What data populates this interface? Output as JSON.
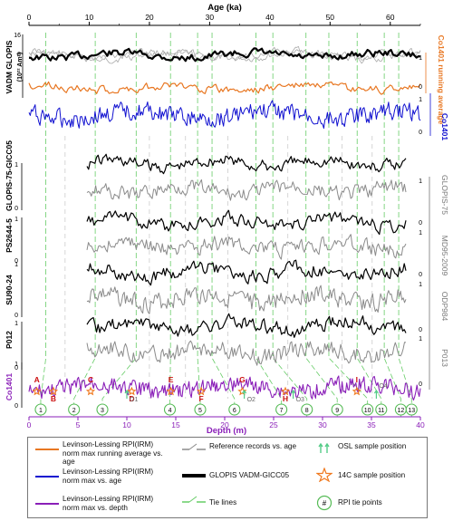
{
  "figure": {
    "top_axis": {
      "title": "Age (ka)",
      "min": 0,
      "max": 65,
      "ticks": [
        "0",
        "10",
        "20",
        "30",
        "40",
        "50",
        "60"
      ]
    },
    "bottom_axis": {
      "title": "Depth (m)",
      "min": 0,
      "max": 40,
      "ticks": [
        "0",
        "5",
        "10",
        "15",
        "20",
        "25",
        "30",
        "35",
        "40"
      ]
    },
    "left_labels": {
      "vadm": "VADM GLOPIS",
      "vadm_unit": "(10²² Am²)",
      "glopis_gicc": "GLOPIS-75-GICC05",
      "ps2644": "PS2644-5",
      "su90": "SU90-24",
      "p012": "P012",
      "co1401_bottom": "Co1401"
    },
    "right_labels": {
      "co1401_running": "Co1401 running average",
      "co1401": "Co1401",
      "glopis75": "GLOPIS-75",
      "md95": "MD95-2009",
      "odp984": "ODP984",
      "p013": "P013"
    },
    "scale_ticks": {
      "vadm": [
        "16",
        "8"
      ],
      "unit_left": [
        "1",
        "0"
      ],
      "unit_right": [
        "1",
        "0"
      ]
    },
    "c14_labels": [
      "A",
      "B",
      "C",
      "D",
      "E",
      "F",
      "G",
      "H",
      "I"
    ],
    "osl_labels": [
      "O1",
      "O2",
      "O3",
      "O4"
    ],
    "tie_points": [
      "1",
      "2",
      "3",
      "4",
      "5",
      "6",
      "7",
      "8",
      "9",
      "10",
      "11",
      "12",
      "13"
    ]
  },
  "legend": {
    "items": [
      {
        "label": "Levinson-Lessing RPI(IRM) norm max running average vs. age"
      },
      {
        "label": "Levinson-Lessing RPI(IRM) norm max vs. age"
      },
      {
        "label": "Levinson-Lessing RPI(IRM) norm max vs. depth"
      },
      {
        "label": "Reference records vs. age"
      },
      {
        "label": "GLOPIS VADM-GICC05"
      },
      {
        "label": "Tie lines"
      },
      {
        "label": "OSL sample position"
      },
      {
        "label": "14C sample position"
      },
      {
        "label": "RPI tie points"
      }
    ],
    "tie_point_symbol": "#"
  },
  "colors": {
    "orange": "#e87722",
    "blue": "#1010d0",
    "purple": "#8a1fb8",
    "green": "#66cc66",
    "gray": "#8a8a8a",
    "black": "#000000",
    "c14_star": "#f07a20",
    "c14_text": "#cc1010",
    "osl": "#55cc88"
  },
  "chart_data": {
    "type": "line",
    "x_age": {
      "label": "Age (ka)",
      "range": [
        0,
        65
      ]
    },
    "x_depth": {
      "label": "Depth (m)",
      "range": [
        0,
        40
      ]
    },
    "tie_points_depth_m": [
      1.2,
      4.6,
      7.5,
      14.4,
      17.5,
      21.0,
      25.8,
      28.4,
      31.5,
      34.6,
      36.0,
      38.0,
      39.1
    ],
    "tie_points_age_ka": [
      2.8,
      11.0,
      17.8,
      23.5,
      28.0,
      30.4,
      37.7,
      40.5,
      46.0,
      49.8,
      54.5,
      59.0,
      61.4
    ],
    "c14_samples_depth_m": [
      {
        "id": "A",
        "d": 0.8
      },
      {
        "id": "B",
        "d": 2.5
      },
      {
        "id": "C",
        "d": 6.3
      },
      {
        "id": "D",
        "d": 10.5
      },
      {
        "id": "E",
        "d": 14.5
      },
      {
        "id": "F",
        "d": 17.6
      },
      {
        "id": "G",
        "d": 21.8
      },
      {
        "id": "H",
        "d": 26.2
      },
      {
        "id": "I",
        "d": 33.5
      }
    ],
    "osl_samples_depth_m": [
      {
        "id": "O1",
        "d": 10.0
      },
      {
        "id": "O2",
        "d": 22.0
      },
      {
        "id": "O3",
        "d": 27.0
      },
      {
        "id": "O4",
        "d": 35.5
      }
    ],
    "series": [
      {
        "name": "GLOPIS VADM-GICC05",
        "axis": "age",
        "unit": "10^22 Am^2"
      },
      {
        "name": "Co1401 running average",
        "axis": "age"
      },
      {
        "name": "Co1401",
        "axis": "age"
      },
      {
        "name": "GLOPIS-75-GICC05",
        "axis": "age"
      },
      {
        "name": "GLOPIS-75",
        "axis": "age"
      },
      {
        "name": "PS2644-5",
        "axis": "age"
      },
      {
        "name": "MD95-2009",
        "axis": "age"
      },
      {
        "name": "SU90-24",
        "axis": "age"
      },
      {
        "name": "ODP984",
        "axis": "age"
      },
      {
        "name": "P012",
        "axis": "age"
      },
      {
        "name": "P013",
        "axis": "age"
      },
      {
        "name": "Co1401",
        "axis": "depth"
      }
    ]
  }
}
